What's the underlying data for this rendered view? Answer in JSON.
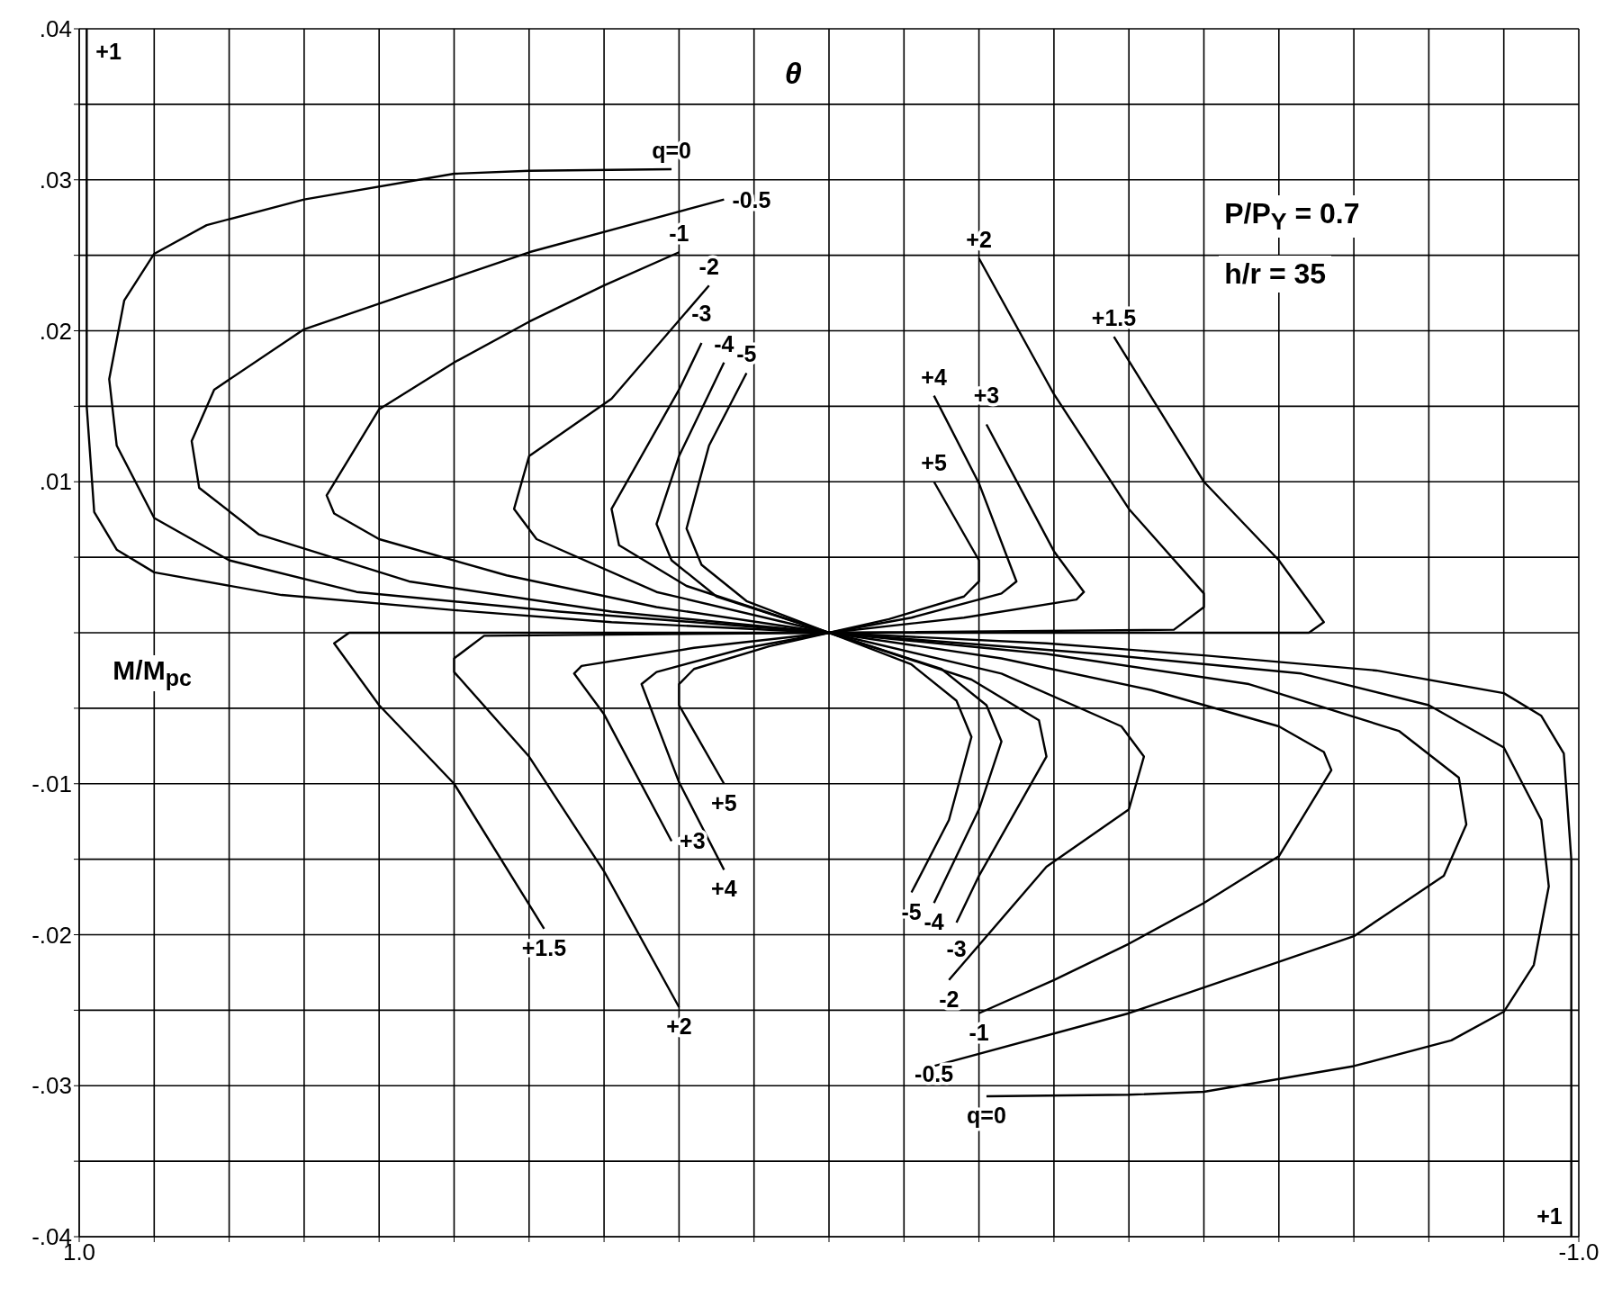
{
  "chart_data": {
    "type": "line",
    "xlabel": "M/M$_{pc}$",
    "ylabel": "θ",
    "annotations": [
      "P/P$_{Y}$ = 0.7",
      "h/r = 35"
    ],
    "xlim": [
      1,
      -1
    ],
    "xticks": [
      {
        "value": 1,
        "label": "1.0"
      },
      {
        "value": 0.9,
        "label": null
      },
      {
        "value": 0.8,
        "label": null
      },
      {
        "value": 0.7,
        "label": null
      },
      {
        "value": 0.6,
        "label": null
      },
      {
        "value": 0.5,
        "label": null
      },
      {
        "value": 0.4,
        "label": null
      },
      {
        "value": 0.3,
        "label": null
      },
      {
        "value": 0.2,
        "label": null
      },
      {
        "value": 0.1,
        "label": null
      },
      {
        "value": 0,
        "label": null
      },
      {
        "value": -0.1,
        "label": null
      },
      {
        "value": -0.2,
        "label": null
      },
      {
        "value": -0.3,
        "label": null
      },
      {
        "value": -0.4,
        "label": null
      },
      {
        "value": -0.5,
        "label": null
      },
      {
        "value": -0.6,
        "label": null
      },
      {
        "value": -0.7,
        "label": null
      },
      {
        "value": -0.8,
        "label": null
      },
      {
        "value": -0.9,
        "label": null
      },
      {
        "value": -1,
        "label": "-1.0"
      }
    ],
    "ylim": [
      -0.04,
      0.04
    ],
    "yticks": [
      {
        "value": -0.04,
        "label": "-.04"
      },
      {
        "value": -0.035,
        "label": null
      },
      {
        "value": -0.03,
        "label": "-.03"
      },
      {
        "value": -0.025,
        "label": null
      },
      {
        "value": -0.02,
        "label": "-.02"
      },
      {
        "value": -0.015,
        "label": null
      },
      {
        "value": -0.01,
        "label": "-.01"
      },
      {
        "value": -0.005,
        "label": null
      },
      {
        "value": 0,
        "label": null
      },
      {
        "value": 0.005,
        "label": null
      },
      {
        "value": 0.01,
        "label": ".01"
      },
      {
        "value": 0.015,
        "label": null
      },
      {
        "value": 0.02,
        "label": ".02"
      },
      {
        "value": 0.025,
        "label": null
      },
      {
        "value": 0.03,
        "label": ".03"
      },
      {
        "value": 0.035,
        "label": null
      },
      {
        "value": 0.04,
        "label": ".04"
      }
    ],
    "grid": true,
    "marker": "none",
    "line_style": "solid",
    "series": [
      {
        "name": "+1",
        "color": "#000000",
        "values": [
          0.04,
          0.03,
          0.015,
          0.008,
          0.0055,
          0.004,
          0.0025,
          0.0015,
          0.0007,
          0,
          -0.0007,
          -0.0015,
          -0.0025,
          -0.004,
          -0.0055,
          -0.008,
          -0.015,
          -0.03,
          -0.04
        ],
        "x": [
          0.99,
          0.99,
          0.99,
          0.98,
          0.95,
          0.9,
          0.73,
          0.5,
          0.29,
          0,
          -0.29,
          -0.5,
          -0.73,
          -0.9,
          -0.95,
          -0.98,
          -0.99,
          -0.99,
          -0.99
        ]
      },
      {
        "name": "q=0",
        "color": "#000000",
        "values": [
          0.0307,
          0.0306,
          0.0304,
          0.0287,
          0.027,
          0.0251,
          0.022,
          0.0168,
          0.0124,
          0.0076,
          0.0048,
          0.0027,
          0.0014,
          0,
          -0.0014,
          -0.0027,
          -0.0048,
          -0.0076,
          -0.0124,
          -0.0168,
          -0.022,
          -0.0251,
          -0.027,
          -0.0287,
          -0.0304,
          -0.0306,
          -0.0307
        ],
        "x": [
          0.21,
          0.4,
          0.5,
          0.7,
          0.83,
          0.9,
          0.94,
          0.96,
          0.95,
          0.9,
          0.8,
          0.63,
          0.36,
          0,
          -0.36,
          -0.63,
          -0.8,
          -0.9,
          -0.95,
          -0.96,
          -0.94,
          -0.9,
          -0.83,
          -0.7,
          -0.5,
          -0.4,
          -0.21
        ]
      },
      {
        "name": "-0.5",
        "color": "#000000",
        "values": [
          0.0287,
          0.0252,
          0.0218,
          0.0201,
          0.0161,
          0.0127,
          0.0096,
          0.0065,
          0.0034,
          0.0014,
          0,
          -0.0014,
          -0.0034,
          -0.0065,
          -0.0096,
          -0.0127,
          -0.0161,
          -0.0201,
          -0.0218,
          -0.0252,
          -0.0287
        ],
        "x": [
          0.14,
          0.4,
          0.6,
          0.7,
          0.82,
          0.85,
          0.84,
          0.76,
          0.56,
          0.29,
          0,
          -0.29,
          -0.56,
          -0.76,
          -0.84,
          -0.85,
          -0.82,
          -0.7,
          -0.6,
          -0.4,
          -0.14
        ]
      },
      {
        "name": "-1",
        "color": "#000000",
        "values": [
          0.0252,
          0.023,
          0.0206,
          0.0179,
          0.0148,
          0.0091,
          0.0079,
          0.0062,
          0.0038,
          0.0017,
          0,
          -0.0017,
          -0.0038,
          -0.0062,
          -0.0079,
          -0.0091,
          -0.0148,
          -0.0179,
          -0.0206,
          -0.023,
          -0.0252
        ],
        "x": [
          0.2,
          0.3,
          0.4,
          0.5,
          0.6,
          0.67,
          0.66,
          0.6,
          0.43,
          0.23,
          0,
          -0.23,
          -0.43,
          -0.6,
          -0.66,
          -0.67,
          -0.6,
          -0.5,
          -0.4,
          -0.3,
          -0.2
        ]
      },
      {
        "name": "-2",
        "color": "#000000",
        "values": [
          0.023,
          0.0155,
          0.0117,
          0.0082,
          0.0062,
          0.0027,
          0,
          -0.0027,
          -0.0062,
          -0.0082,
          -0.0117,
          -0.0155,
          -0.023
        ],
        "x": [
          0.16,
          0.29,
          0.4,
          0.42,
          0.39,
          0.23,
          0,
          -0.23,
          -0.39,
          -0.42,
          -0.4,
          -0.29,
          -0.16
        ]
      },
      {
        "name": "-3",
        "color": "#000000",
        "values": [
          0.0192,
          0.0161,
          0.0082,
          0.0058,
          0.0031,
          0,
          -0.0031,
          -0.0058,
          -0.0082,
          -0.0161,
          -0.0192
        ],
        "x": [
          0.17,
          0.2,
          0.29,
          0.28,
          0.19,
          0,
          -0.19,
          -0.28,
          -0.29,
          -0.2,
          -0.17
        ]
      },
      {
        "name": "-4",
        "color": "#000000",
        "values": [
          0.0179,
          0.0117,
          0.0072,
          0.0048,
          0.0024,
          0,
          -0.0024,
          -0.0048,
          -0.0072,
          -0.0117,
          -0.0179
        ],
        "x": [
          0.14,
          0.2,
          0.23,
          0.21,
          0.15,
          0,
          -0.15,
          -0.21,
          -0.23,
          -0.2,
          -0.14
        ]
      },
      {
        "name": "-5",
        "color": "#000000",
        "values": [
          0.0172,
          0.0124,
          0.0069,
          0.0045,
          0.0021,
          0,
          -0.0021,
          -0.0045,
          -0.0069,
          -0.0124,
          -0.0172
        ],
        "x": [
          0.11,
          0.16,
          0.19,
          0.17,
          0.11,
          0,
          -0.11,
          -0.17,
          -0.19,
          -0.16,
          -0.11
        ]
      },
      {
        "name": "+1.5",
        "color": "#000000",
        "values": [
          0.0196,
          0.01,
          0.0048,
          0.0007,
          0,
          0,
          0,
          -0.0007,
          -0.0048,
          -0.01,
          -0.0196
        ],
        "x": [
          -0.38,
          -0.5,
          -0.6,
          -0.66,
          -0.64,
          0,
          0.64,
          0.66,
          0.6,
          0.5,
          0.38
        ]
      },
      {
        "name": "+2",
        "color": "#000000",
        "values": [
          0.0248,
          0.0158,
          0.0082,
          0.0026,
          0.0017,
          0.0002,
          0,
          -0.0002,
          -0.0017,
          -0.0026,
          -0.0082,
          -0.0158,
          -0.0248
        ],
        "x": [
          -0.2,
          -0.3,
          -0.4,
          -0.5,
          -0.5,
          -0.46,
          0,
          0.46,
          0.5,
          0.5,
          0.4,
          0.3,
          0.2
        ]
      },
      {
        "name": "+3",
        "color": "#000000",
        "values": [
          0.0138,
          0.0054,
          0.0027,
          0.0022,
          0.001,
          0,
          -0.001,
          -0.0022,
          -0.0027,
          -0.0054,
          -0.0138
        ],
        "x": [
          -0.21,
          -0.3,
          -0.34,
          -0.33,
          -0.18,
          0,
          0.18,
          0.33,
          0.34,
          0.3,
          0.21
        ]
      },
      {
        "name": "+4",
        "color": "#000000",
        "values": [
          0.0157,
          0.0099,
          0.0034,
          0.0026,
          0.001,
          0,
          -0.001,
          -0.0026,
          -0.0034,
          -0.0099,
          -0.0157
        ],
        "x": [
          -0.14,
          -0.2,
          -0.25,
          -0.23,
          -0.11,
          0,
          0.11,
          0.23,
          0.25,
          0.2,
          0.14
        ]
      },
      {
        "name": "+5",
        "color": "#000000",
        "values": [
          0.01,
          0.0048,
          0.0034,
          0.0024,
          0.0009,
          0,
          -0.0009,
          -0.0024,
          -0.0034,
          -0.0048,
          -0.01
        ],
        "x": [
          -0.14,
          -0.2,
          -0.2,
          -0.18,
          -0.08,
          0,
          0.08,
          0.18,
          0.2,
          0.2,
          0.14
        ]
      }
    ]
  }
}
